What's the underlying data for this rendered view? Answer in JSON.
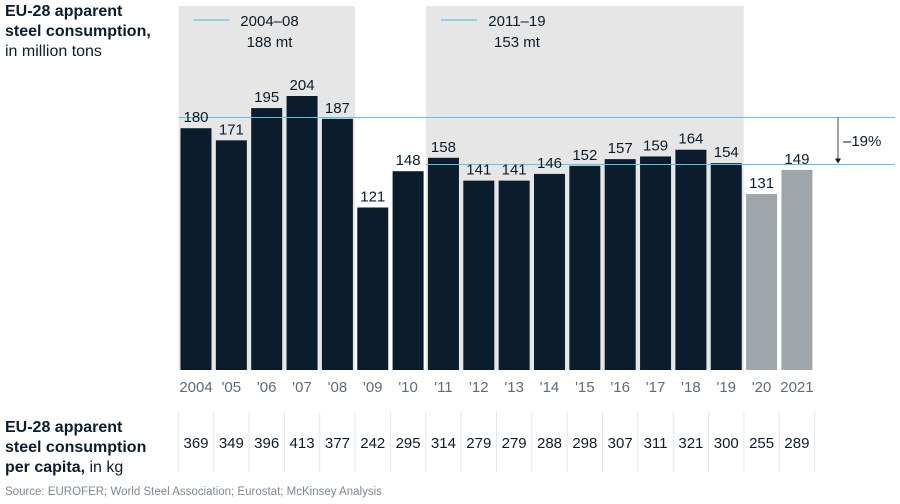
{
  "title": {
    "line1": "EU-28 apparent",
    "line2": "steel consumption,",
    "unit": "in million tons"
  },
  "per_capita": {
    "line1": "EU-28 apparent",
    "line2": "steel consumption",
    "line3_bold": "per capita,",
    "line3_unit": " in kg",
    "values": [
      369,
      349,
      396,
      413,
      377,
      242,
      295,
      314,
      279,
      279,
      288,
      298,
      307,
      311,
      321,
      300,
      255,
      289
    ]
  },
  "source": "Source: EUROFER; World Steel Association; Eurostat; McKinsey Analysis",
  "colors": {
    "bar_actual": "#0b1c2c",
    "bar_estimate": "#9ea5ab",
    "period_box": "#e6e6e6",
    "average_line": "#5bc4e6"
  },
  "chart_data": {
    "type": "bar",
    "categories": [
      "2004",
      "'05",
      "'06",
      "'07",
      "'08",
      "'09",
      "'10",
      "'11",
      "'12",
      "'13",
      "'14",
      "'15",
      "'16",
      "'17",
      "'18",
      "'19",
      "'20",
      "2021"
    ],
    "values": [
      180,
      171,
      195,
      204,
      187,
      121,
      148,
      158,
      141,
      141,
      146,
      152,
      157,
      159,
      164,
      154,
      131,
      149
    ],
    "estimated": [
      false,
      false,
      false,
      false,
      false,
      false,
      false,
      false,
      false,
      false,
      false,
      false,
      false,
      false,
      false,
      false,
      true,
      true
    ],
    "ylim": [
      0,
      204
    ],
    "periods": [
      {
        "label": "2004–08",
        "average_label": "188 mt",
        "average": 188,
        "from": "2004",
        "to": "'08"
      },
      {
        "label": "2011–19",
        "average_label": "153 mt",
        "average": 153,
        "from": "'11",
        "to": "'19"
      }
    ],
    "change_label": "–19%"
  }
}
